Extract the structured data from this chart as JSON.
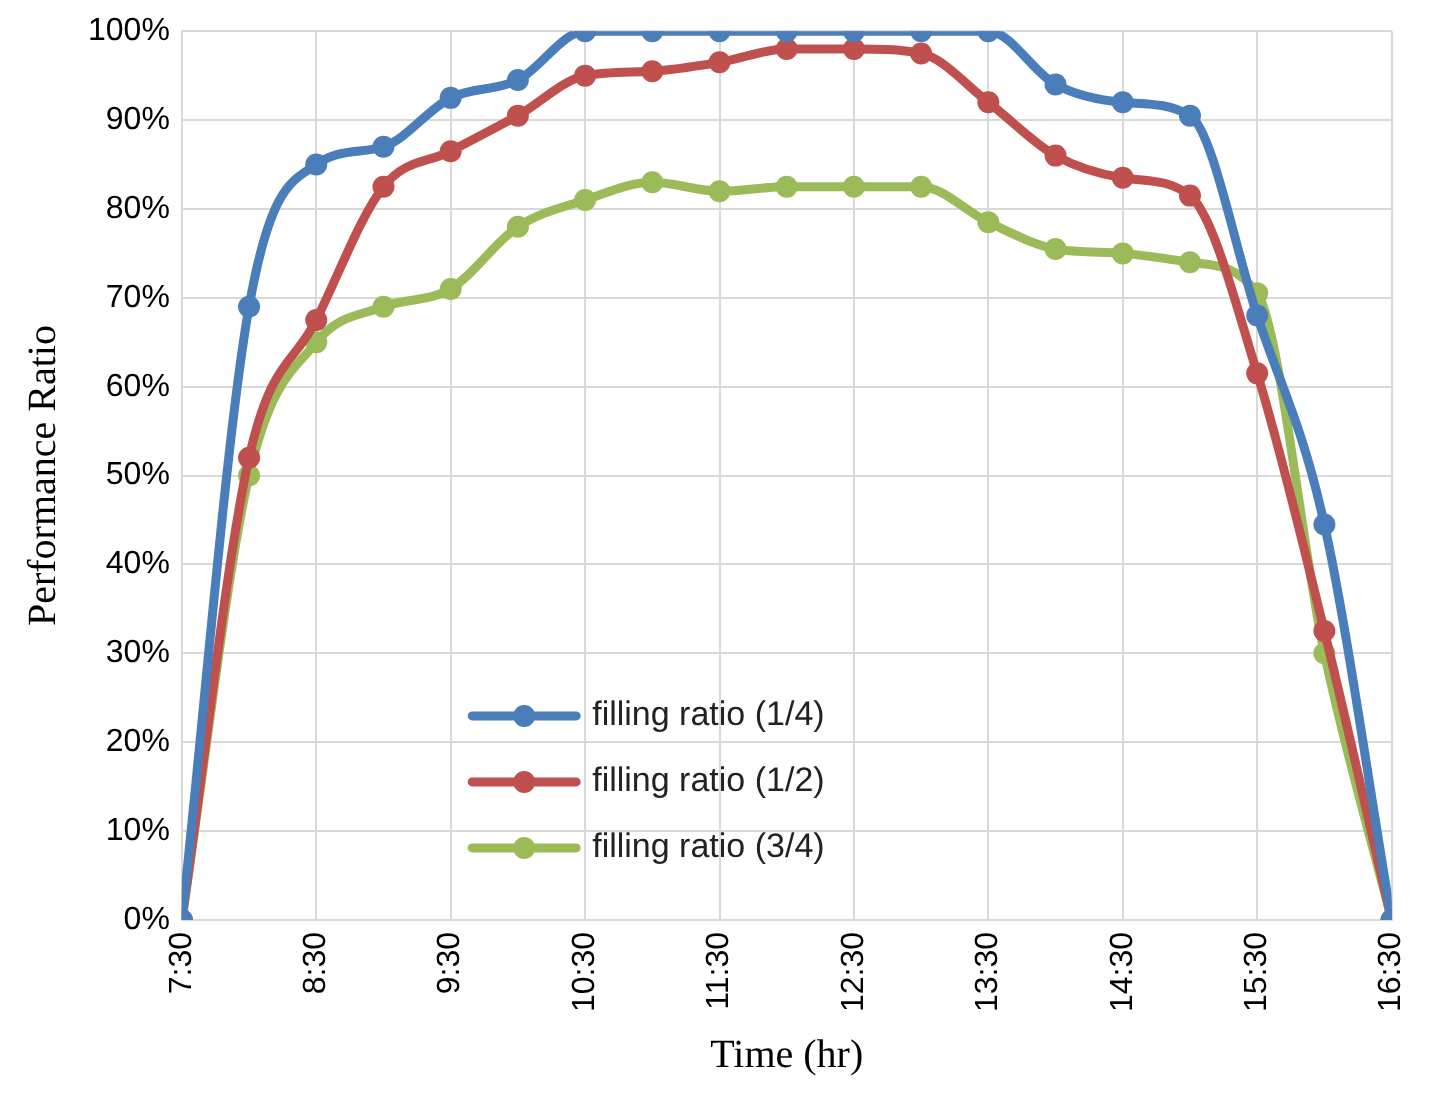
{
  "chart_data": {
    "type": "line",
    "xlabel": "Time (hr)",
    "ylabel": "Performance Ratio",
    "x": [
      7.5,
      8,
      8.5,
      9,
      9.5,
      10,
      10.5,
      11,
      11.5,
      12,
      12.5,
      13,
      13.5,
      14,
      14.5,
      15,
      15.5,
      16,
      16.5
    ],
    "series": [
      {
        "name": "filling ratio (1/4)",
        "color": "#4a7ebb",
        "values": [
          0,
          69,
          85,
          87,
          92.5,
          94.5,
          100,
          100,
          100,
          100,
          100,
          100,
          100,
          94,
          92,
          90.5,
          68,
          44.5,
          0
        ]
      },
      {
        "name": "filling ratio (1/2)",
        "color": "#c0504d",
        "values": [
          0,
          52,
          67.5,
          82.5,
          86.5,
          90.5,
          95,
          95.5,
          96.5,
          98,
          98,
          97.5,
          92,
          86,
          83.5,
          81.5,
          61.5,
          32.5,
          0
        ]
      },
      {
        "name": "filling ratio (3/4)",
        "color": "#9bbb59",
        "values": [
          0,
          50,
          65,
          69,
          71,
          78,
          81,
          83,
          82,
          82.5,
          82.5,
          82.5,
          78.5,
          75.5,
          75,
          74,
          70.5,
          30,
          0
        ]
      }
    ],
    "xlim": [
      7.5,
      16.5
    ],
    "xticks": [
      {
        "value": 7.5,
        "label": "7:30"
      },
      {
        "value": 8.5,
        "label": "8:30"
      },
      {
        "value": 9.5,
        "label": "9:30"
      },
      {
        "value": 10.5,
        "label": "10:30"
      },
      {
        "value": 11.5,
        "label": "11:30"
      },
      {
        "value": 12.5,
        "label": "12:30"
      },
      {
        "value": 13.5,
        "label": "13:30"
      },
      {
        "value": 14.5,
        "label": "14:30"
      },
      {
        "value": 15.5,
        "label": "15:30"
      },
      {
        "value": 16.5,
        "label": "16:30"
      }
    ],
    "ylim": [
      0,
      100
    ],
    "yticks": [
      {
        "value": 0,
        "label": "0%"
      },
      {
        "value": 10,
        "label": "10%"
      },
      {
        "value": 20,
        "label": "20%"
      },
      {
        "value": 30,
        "label": "30%"
      },
      {
        "value": 40,
        "label": "40%"
      },
      {
        "value": 50,
        "label": "50%"
      },
      {
        "value": 60,
        "label": "60%"
      },
      {
        "value": 70,
        "label": "70%"
      },
      {
        "value": 80,
        "label": "80%"
      },
      {
        "value": 90,
        "label": "90%"
      },
      {
        "value": 100,
        "label": "100%"
      }
    ],
    "grid": true,
    "legend": "bottom",
    "marker": "circle",
    "line_style": "solid"
  }
}
